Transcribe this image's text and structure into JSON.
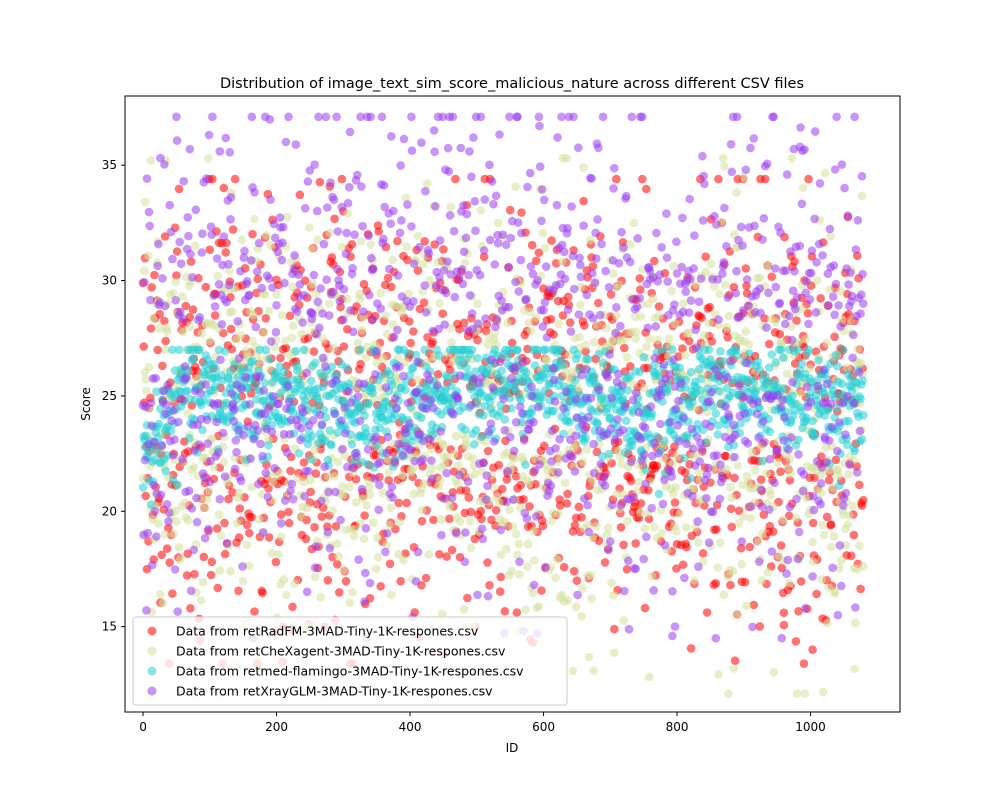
{
  "chart_data": {
    "type": "scatter",
    "title": "Distribution of image_text_sim_score_malicious_nature across different CSV files",
    "xlabel": "ID",
    "ylabel": "Score",
    "xlim": [
      -27,
      1134
    ],
    "ylim": [
      11.3,
      38.0
    ],
    "xticks": [
      0,
      200,
      400,
      600,
      800,
      1000
    ],
    "yticks": [
      15,
      20,
      25,
      30,
      35
    ],
    "grid": false,
    "legend_position": "lower-left",
    "n_points_per_series": 1080,
    "series": [
      {
        "name": "Data from retRadFM-3MAD-Tiny-1K-respones.csv",
        "color": "#ff0000",
        "alpha": 0.55,
        "distribution": {
          "mean": 24.0,
          "sd": 4.6,
          "min": 13.4,
          "max": 34.4
        },
        "notable_points": [
          [
            298,
            34.4
          ],
          [
            1003,
            14.0
          ],
          [
            990,
            13.4
          ],
          [
            960,
            15.6
          ],
          [
            209,
            15.0
          ]
        ]
      },
      {
        "name": "Data from retCheXagent-3MAD-Tiny-1K-respones.csv",
        "color": "#d4e09b",
        "alpha": 0.55,
        "distribution": {
          "mean": 24.0,
          "sd": 4.4,
          "min": 12.1,
          "max": 35.3
        },
        "notable_points": [
          [
            12,
            35.2
          ],
          [
            34,
            35.2
          ],
          [
            980,
            12.1
          ],
          [
            3,
            33.4
          ]
        ]
      },
      {
        "name": "Data from retmed-flamingo-3MAD-Tiny-1K-respones.csv",
        "color": "#22d0d5",
        "alpha": 0.55,
        "distribution": {
          "mean": 24.8,
          "sd": 1.2,
          "min": 20.3,
          "max": 27.0
        },
        "segment_means": [
          [
            0,
            22.0
          ],
          [
            60,
            25.2
          ],
          [
            200,
            24.9
          ],
          [
            300,
            24.0
          ],
          [
            480,
            25.5
          ],
          [
            620,
            25.8
          ],
          [
            740,
            24.0
          ],
          [
            840,
            25.2
          ],
          [
            1080,
            24.8
          ]
        ]
      },
      {
        "name": "Data from retXrayGLM-3MAD-Tiny-1K-respones.csv",
        "color": "#9b3df0",
        "alpha": 0.55,
        "distribution": {
          "mean": 27.0,
          "sd": 5.0,
          "min": 14.5,
          "max": 37.1
        },
        "notable_points": [
          [
            402,
            37.1
          ],
          [
            594,
            36.7
          ],
          [
            115,
            35.6
          ],
          [
            984,
            35.8
          ],
          [
            975,
            35.7
          ],
          [
            793,
            14.6
          ],
          [
            797,
            15.0
          ]
        ]
      }
    ]
  }
}
